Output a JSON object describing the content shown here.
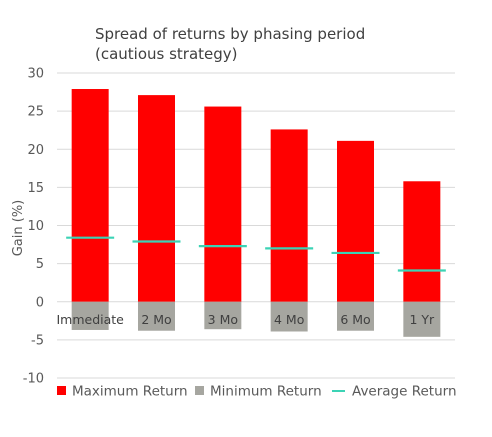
{
  "chart_data": {
    "type": "bar",
    "title_lines": [
      "Spread of returns by phasing period",
      "(cautious strategy)"
    ],
    "xlabel": "",
    "ylabel": "Gain (%)",
    "ylim": [
      -10,
      30
    ],
    "yticks": [
      30,
      25,
      20,
      15,
      10,
      5,
      0,
      -5,
      -10
    ],
    "grid": true,
    "legend_position": "bottom",
    "categories": [
      "Immediate",
      "2 Mo",
      "3 Mo",
      "4 Mo",
      "6 Mo",
      "1 Yr"
    ],
    "series": [
      {
        "name": "Maximum Return",
        "kind": "bar",
        "color": "#ff0000",
        "values": [
          27.9,
          27.1,
          25.6,
          22.6,
          21.1,
          15.8
        ]
      },
      {
        "name": "Minimum Return",
        "kind": "bar",
        "color": "#a6a6a0",
        "values": [
          -3.7,
          -3.8,
          -3.6,
          -3.9,
          -3.8,
          -4.6
        ]
      },
      {
        "name": "Average Return",
        "kind": "marker",
        "color": "#3cd3b5",
        "values": [
          8.4,
          7.9,
          7.3,
          7.0,
          6.4,
          4.1
        ]
      }
    ]
  }
}
